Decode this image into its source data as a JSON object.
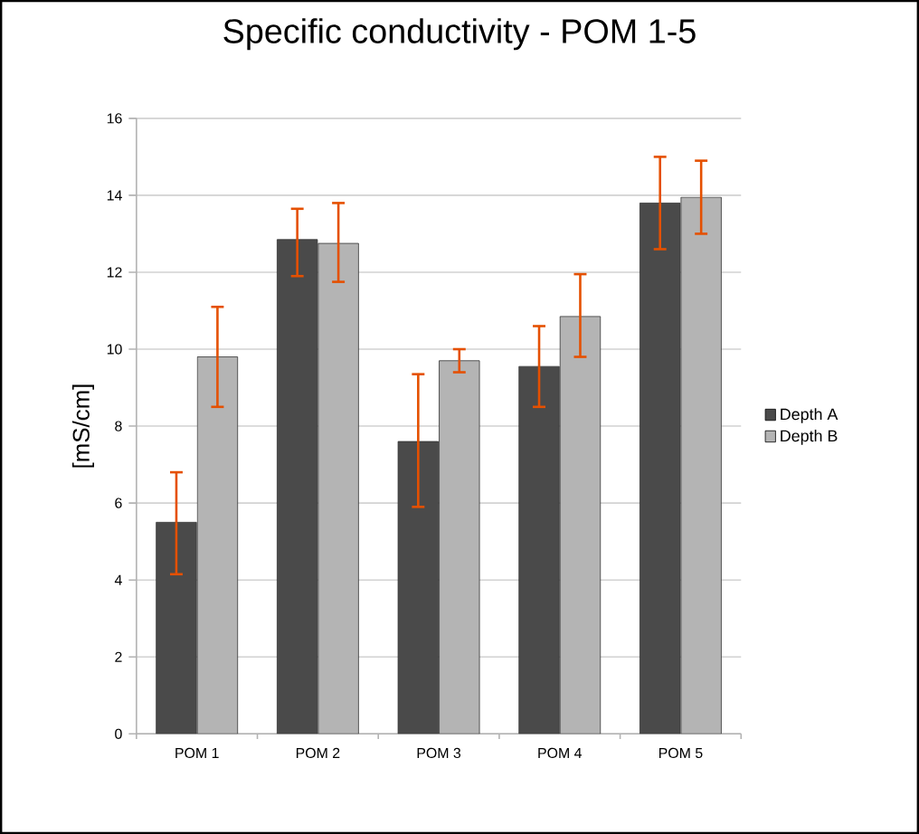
{
  "chart_data": {
    "type": "bar",
    "title": "Specific conductivity - POM 1-5",
    "ylabel": "[mS/cm]",
    "categories": [
      "POM 1",
      "POM 2",
      "POM 3",
      "POM 4",
      "POM 5"
    ],
    "series": [
      {
        "name": "Depth A",
        "color": "#4a4a4a",
        "values": [
          5.5,
          12.85,
          7.6,
          9.55,
          13.8
        ],
        "errors": [
          [
            4.15,
            6.8
          ],
          [
            11.9,
            13.65
          ],
          [
            5.9,
            9.35
          ],
          [
            8.5,
            10.6
          ],
          [
            12.6,
            15.0
          ]
        ]
      },
      {
        "name": "Depth B",
        "color": "#b4b4b4",
        "values": [
          9.8,
          12.75,
          9.7,
          10.85,
          13.95
        ],
        "errors": [
          [
            8.5,
            11.1
          ],
          [
            11.75,
            13.8
          ],
          [
            9.4,
            10.0
          ],
          [
            9.8,
            11.95
          ],
          [
            13.0,
            14.9
          ]
        ]
      }
    ],
    "ylim": [
      0,
      16
    ],
    "yticks": [
      0,
      2,
      4,
      6,
      8,
      10,
      12,
      14,
      16
    ],
    "grid": "y",
    "legend": "right"
  }
}
